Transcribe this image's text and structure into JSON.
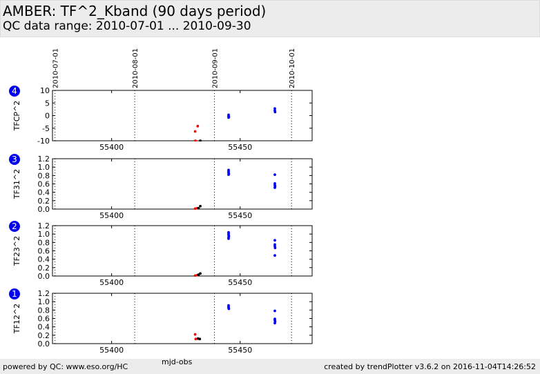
{
  "header": {
    "title": "AMBER: TF^2_Kband (90 days period)",
    "subtitle": "QC data range: 2010-07-01 ... 2010-09-30"
  },
  "footer": {
    "left": "powered by QC: www.eso.org/HC",
    "right": "created by trendPlotter v3.6.2 on 2016-11-04T14:26:52"
  },
  "chart_data": {
    "type": "scatter",
    "xlabel": "mjd-obs",
    "xlim": [
      55377,
      55478
    ],
    "xticks": [
      55400,
      55450
    ],
    "date_markers": [
      {
        "label": "2010-07-01",
        "mjd": 55378
      },
      {
        "label": "2010-08-01",
        "mjd": 55409
      },
      {
        "label": "2010-09-01",
        "mjd": 55440
      },
      {
        "label": "2010-10-01",
        "mjd": 55470
      }
    ],
    "colors": {
      "red": "#ff0000",
      "black": "#000000",
      "blue": "#0000ff",
      "badge": "#0000ee"
    },
    "panels": [
      {
        "badge": "4",
        "ylabel": "TFCP^2",
        "ylim": [
          -10,
          10
        ],
        "yticks": [
          10,
          5,
          0,
          -5,
          -10
        ],
        "series": [
          {
            "color": "red",
            "points": [
              [
                55432.5,
                -6.3
              ],
              [
                55433.5,
                -4.2
              ],
              [
                55432.6,
                -10.0
              ]
            ]
          },
          {
            "color": "black",
            "points": [
              [
                55434.5,
                -10.0
              ]
            ]
          },
          {
            "color": "blue",
            "points": [
              [
                55445.5,
                0.3
              ],
              [
                55445.5,
                -0.2
              ],
              [
                55445.6,
                -0.5
              ],
              [
                55445.5,
                -0.8
              ],
              [
                55463.5,
                2.8
              ],
              [
                55463.5,
                2.0
              ],
              [
                55463.6,
                1.4
              ]
            ]
          }
        ]
      },
      {
        "badge": "3",
        "ylabel": "TF31^2",
        "ylim": [
          0,
          1.2
        ],
        "yticks": [
          "1.2",
          "1.0",
          "0.8",
          "0.6",
          "0.4",
          "0.2",
          "0.0"
        ],
        "series": [
          {
            "color": "red",
            "points": [
              [
                55432.5,
                0.01
              ],
              [
                55433.3,
                0.02
              ]
            ]
          },
          {
            "color": "black",
            "points": [
              [
                55434.5,
                0.07
              ],
              [
                55433.8,
                0.02
              ]
            ]
          },
          {
            "color": "blue",
            "points": [
              [
                55445.5,
                0.93
              ],
              [
                55445.5,
                0.9
              ],
              [
                55445.5,
                0.87
              ],
              [
                55445.6,
                0.84
              ],
              [
                55445.5,
                0.82
              ],
              [
                55463.5,
                0.82
              ],
              [
                55463.5,
                0.61
              ],
              [
                55463.5,
                0.57
              ],
              [
                55463.6,
                0.54
              ],
              [
                55463.5,
                0.51
              ]
            ]
          }
        ]
      },
      {
        "badge": "2",
        "ylabel": "TF23^2",
        "ylim": [
          0,
          1.2
        ],
        "yticks": [
          "1.2",
          "1.0",
          "0.8",
          "0.6",
          "0.4",
          "0.2",
          "0.0"
        ],
        "series": [
          {
            "color": "red",
            "points": [
              [
                55432.5,
                0.01
              ],
              [
                55433.3,
                0.02
              ]
            ]
          },
          {
            "color": "black",
            "points": [
              [
                55434.5,
                0.06
              ],
              [
                55433.8,
                0.03
              ]
            ]
          },
          {
            "color": "blue",
            "points": [
              [
                55445.5,
                1.04
              ],
              [
                55445.5,
                1.01
              ],
              [
                55445.5,
                0.98
              ],
              [
                55445.6,
                0.95
              ],
              [
                55445.5,
                0.92
              ],
              [
                55445.5,
                0.89
              ],
              [
                55463.5,
                0.85
              ],
              [
                55463.5,
                0.75
              ],
              [
                55463.5,
                0.71
              ],
              [
                55463.6,
                0.67
              ],
              [
                55463.5,
                0.49
              ]
            ]
          }
        ]
      },
      {
        "badge": "1",
        "ylabel": "TF12^2",
        "ylim": [
          0,
          1.2
        ],
        "yticks": [
          "1.2",
          "1.0",
          "0.8",
          "0.6",
          "0.4",
          "0.2",
          "0.0"
        ],
        "series": [
          {
            "color": "red",
            "points": [
              [
                55432.5,
                0.22
              ],
              [
                55432.7,
                0.11
              ]
            ]
          },
          {
            "color": "black",
            "points": [
              [
                55434.3,
                0.11
              ],
              [
                55433.6,
                0.12
              ]
            ]
          },
          {
            "color": "blue",
            "points": [
              [
                55445.5,
                0.91
              ],
              [
                55445.5,
                0.88
              ],
              [
                55445.5,
                0.86
              ],
              [
                55445.6,
                0.83
              ],
              [
                55463.5,
                0.78
              ],
              [
                55463.5,
                0.59
              ],
              [
                55463.5,
                0.56
              ],
              [
                55463.6,
                0.53
              ],
              [
                55463.5,
                0.49
              ]
            ]
          }
        ]
      }
    ]
  }
}
